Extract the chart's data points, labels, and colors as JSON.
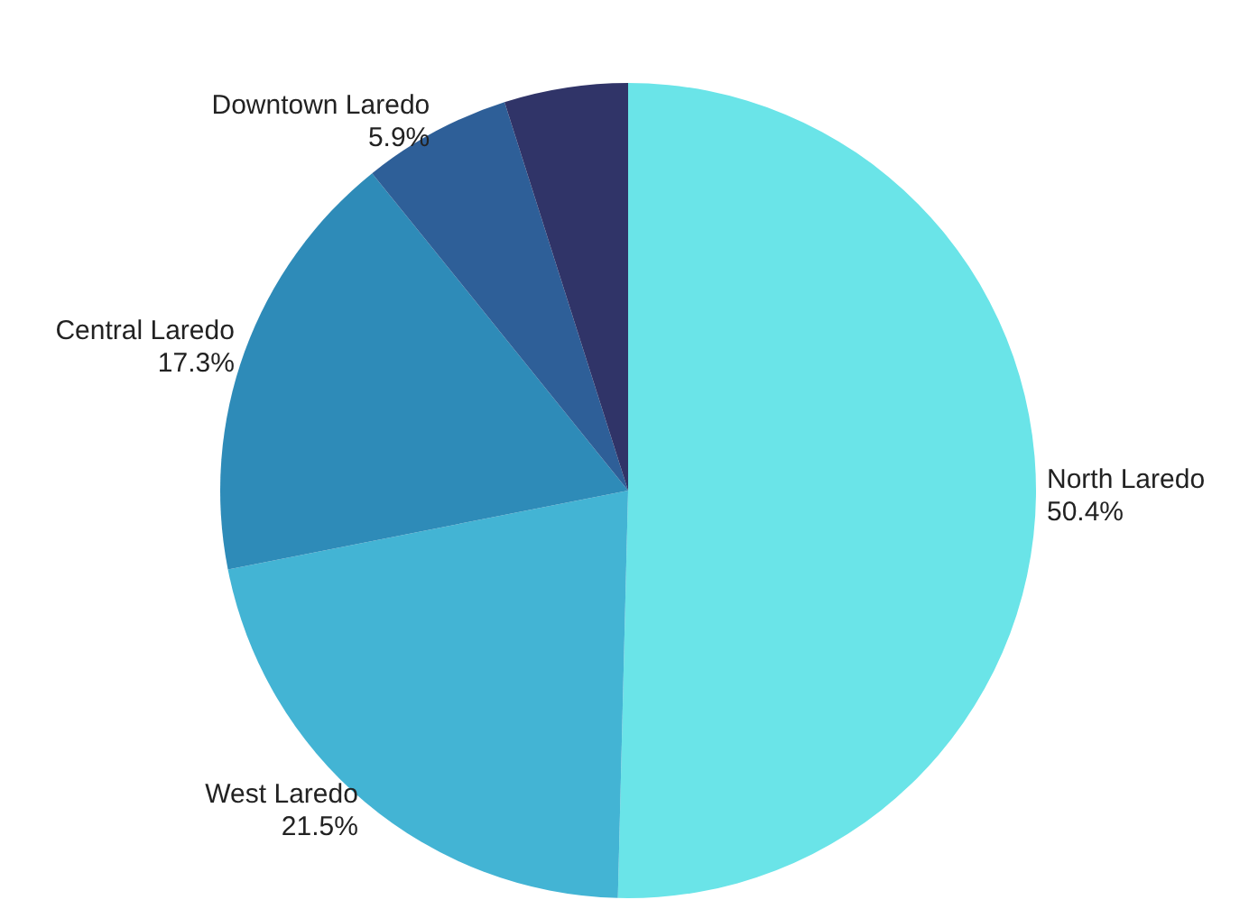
{
  "chart_data": {
    "type": "pie",
    "categories": [
      "North Laredo",
      "West Laredo",
      "Central Laredo",
      "Downtown Laredo",
      null
    ],
    "values": [
      50.4,
      21.5,
      17.3,
      5.9,
      4.9
    ],
    "value_labels": [
      "50.4%",
      "21.5%",
      "17.3%",
      "5.9%",
      null
    ],
    "colors": [
      "#6ae4e8",
      "#43b4d4",
      "#2e8bb8",
      "#2e5f98",
      "#303468"
    ]
  }
}
